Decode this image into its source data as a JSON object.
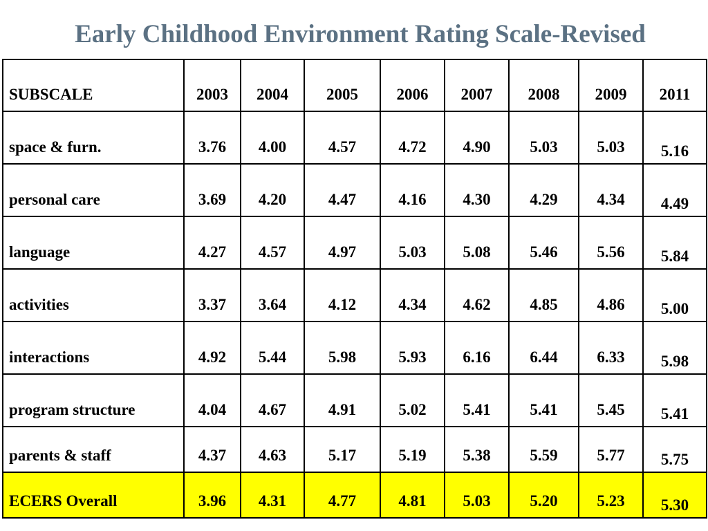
{
  "title": "Early Childhood Environment Rating Scale-Revised",
  "table": {
    "header": [
      "SUBSCALE",
      "2003",
      "2004",
      "2005",
      "2006",
      "2007",
      "2008",
      "2009",
      "2011"
    ],
    "rows": [
      {
        "label": "space & furn.",
        "values": [
          "3.76",
          "4.00",
          "4.57",
          "4.72",
          "4.90",
          "5.03",
          "5.03",
          "5.16"
        ]
      },
      {
        "label": "personal care",
        "values": [
          "3.69",
          "4.20",
          "4.47",
          "4.16",
          "4.30",
          "4.29",
          "4.34",
          "4.49"
        ]
      },
      {
        "label": "language",
        "values": [
          "4.27",
          "4.57",
          "4.97",
          "5.03",
          "5.08",
          "5.46",
          "5.56",
          "5.84"
        ]
      },
      {
        "label": "activities",
        "values": [
          "3.37",
          "3.64",
          "4.12",
          "4.34",
          "4.62",
          "4.85",
          "4.86",
          "5.00"
        ]
      },
      {
        "label": "interactions",
        "values": [
          "4.92",
          "5.44",
          "5.98",
          "5.93",
          "6.16",
          "6.44",
          "6.33",
          "5.98"
        ]
      },
      {
        "label": "program structure",
        "values": [
          "4.04",
          "4.67",
          "4.91",
          "5.02",
          "5.41",
          "5.41",
          "5.45",
          "5.41"
        ]
      },
      {
        "label": "parents & staff",
        "values": [
          "4.37",
          "4.63",
          "5.17",
          "5.19",
          "5.38",
          "5.59",
          "5.77",
          "5.75"
        ]
      },
      {
        "label": "ECERS Overall",
        "values": [
          "3.96",
          "4.31",
          "4.77",
          "4.81",
          "5.03",
          "5.20",
          "5.23",
          "5.30"
        ]
      }
    ]
  },
  "colors": {
    "title": "#5b7183",
    "highlight": "#ffff00",
    "border": "#000000"
  }
}
